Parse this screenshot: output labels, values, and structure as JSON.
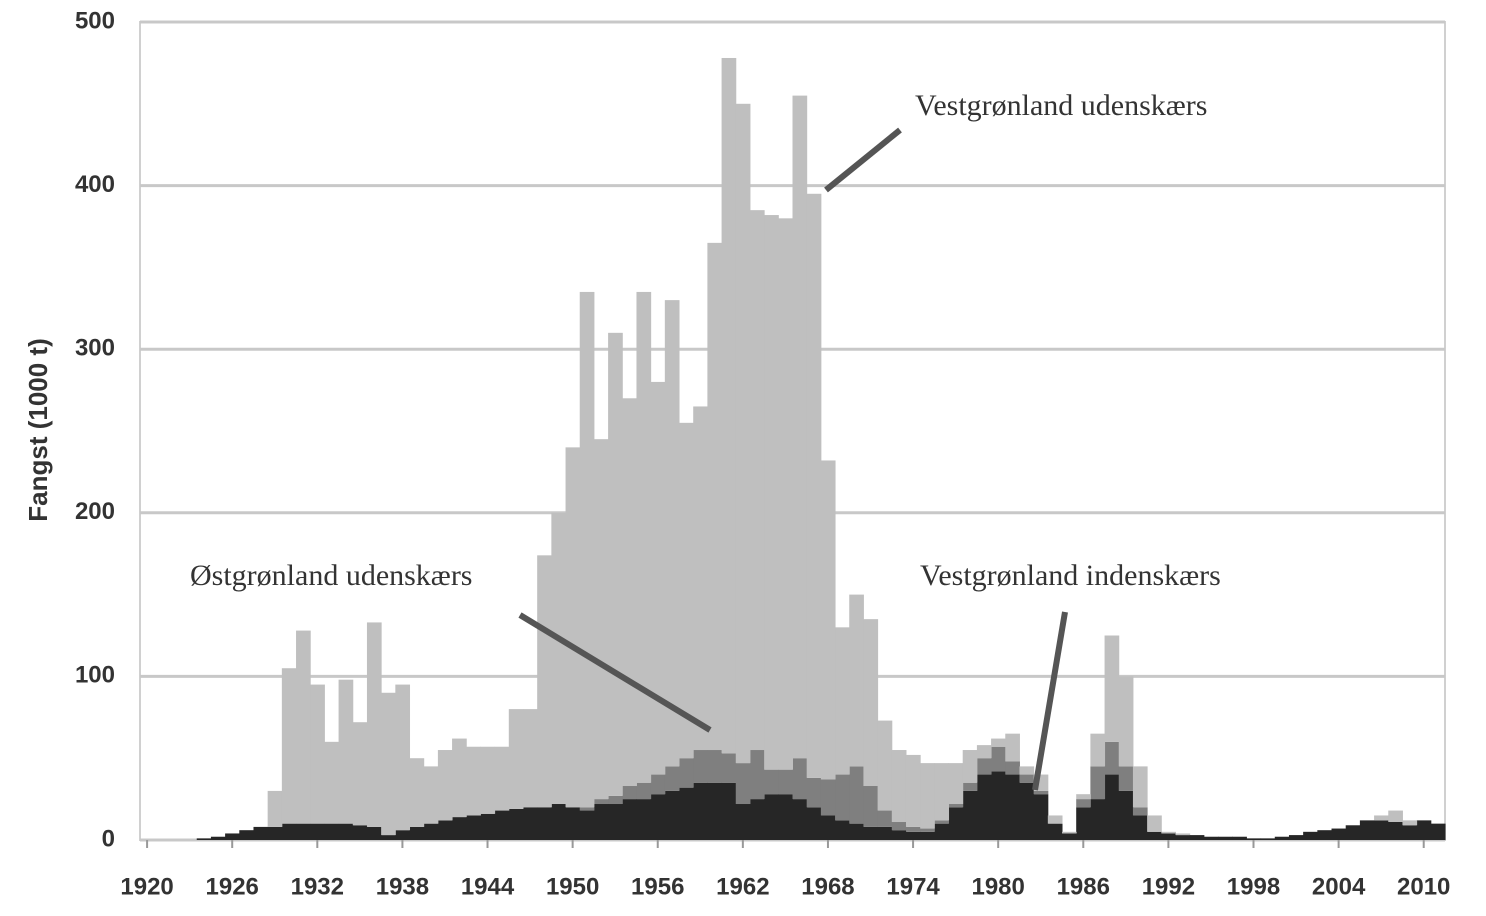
{
  "chart_data": {
    "type": "stacked-bar",
    "y_label": "Fangst (1000 t)",
    "x": [
      1920,
      1921,
      1922,
      1923,
      1924,
      1925,
      1926,
      1927,
      1928,
      1929,
      1930,
      1931,
      1932,
      1933,
      1934,
      1935,
      1936,
      1937,
      1938,
      1939,
      1940,
      1941,
      1942,
      1943,
      1944,
      1945,
      1946,
      1947,
      1948,
      1949,
      1950,
      1951,
      1952,
      1953,
      1954,
      1955,
      1956,
      1957,
      1958,
      1959,
      1960,
      1961,
      1962,
      1963,
      1964,
      1965,
      1966,
      1967,
      1968,
      1969,
      1970,
      1971,
      1972,
      1973,
      1974,
      1975,
      1976,
      1977,
      1978,
      1979,
      1980,
      1981,
      1982,
      1983,
      1984,
      1985,
      1986,
      1987,
      1988,
      1989,
      1990,
      1991,
      1992,
      1993,
      1994,
      1995,
      1996,
      1997,
      1998,
      1999,
      2000,
      2001,
      2002,
      2003,
      2004,
      2005,
      2006,
      2007,
      2008,
      2009,
      2010,
      2011
    ],
    "series": [
      {
        "name": "Vestgrønland indenskærs",
        "color": "#262626",
        "values": [
          0,
          0,
          0,
          0,
          1,
          2,
          4,
          6,
          8,
          8,
          10,
          10,
          10,
          10,
          10,
          9,
          8,
          3,
          6,
          8,
          10,
          12,
          14,
          15,
          16,
          18,
          19,
          20,
          20,
          22,
          20,
          18,
          22,
          22,
          25,
          25,
          28,
          30,
          32,
          35,
          35,
          35,
          22,
          25,
          28,
          28,
          25,
          20,
          15,
          12,
          10,
          8,
          8,
          6,
          5,
          5,
          10,
          20,
          30,
          40,
          42,
          40,
          35,
          28,
          10,
          4,
          20,
          25,
          40,
          30,
          15,
          5,
          4,
          3,
          3,
          2,
          2,
          2,
          1,
          1,
          2,
          3,
          5,
          6,
          7,
          9,
          12,
          12,
          11,
          9,
          12,
          10
        ]
      },
      {
        "name": "Østgrønland udenskærs",
        "color": "#7f7f7f",
        "values": [
          0,
          0,
          0,
          0,
          0,
          0,
          0,
          0,
          0,
          0,
          0,
          0,
          0,
          0,
          0,
          0,
          0,
          0,
          0,
          0,
          0,
          0,
          0,
          0,
          0,
          0,
          0,
          0,
          0,
          0,
          0,
          2,
          3,
          5,
          8,
          10,
          12,
          15,
          18,
          20,
          20,
          18,
          25,
          30,
          15,
          15,
          25,
          18,
          22,
          28,
          35,
          25,
          10,
          5,
          3,
          2,
          2,
          2,
          5,
          10,
          15,
          8,
          5,
          2,
          0,
          0,
          5,
          20,
          20,
          15,
          5,
          0,
          0,
          0,
          0,
          0,
          0,
          0,
          0,
          0,
          0,
          0,
          0,
          0,
          0,
          0,
          0,
          0,
          0,
          0,
          0,
          0
        ]
      },
      {
        "name": "Vestgrønland udenskærs",
        "color": "#bfbfbf",
        "values": [
          0,
          0,
          0,
          0,
          0,
          0,
          0,
          0,
          0,
          22,
          95,
          118,
          85,
          50,
          88,
          63,
          125,
          87,
          89,
          42,
          35,
          43,
          48,
          42,
          41,
          39,
          61,
          60,
          154,
          178,
          220,
          315,
          220,
          283,
          237,
          300,
          240,
          285,
          205,
          210,
          310,
          425,
          403,
          330,
          339,
          337,
          405,
          357,
          195,
          90,
          105,
          102,
          55,
          44,
          44,
          40,
          35,
          25,
          20,
          8,
          5,
          17,
          5,
          10,
          5,
          1,
          3,
          20,
          65,
          55,
          25,
          10,
          1,
          1,
          0,
          0,
          0,
          0,
          0,
          0,
          0,
          0,
          0,
          0,
          0,
          0,
          0,
          3,
          7,
          3,
          0,
          0
        ]
      }
    ],
    "xlim": [
      1919.5,
      2011.5
    ],
    "xticks": [
      1920,
      1926,
      1932,
      1938,
      1944,
      1950,
      1956,
      1962,
      1968,
      1974,
      1980,
      1986,
      1992,
      1998,
      2004,
      2010
    ],
    "ylim": [
      0,
      500
    ],
    "yticks": [
      0,
      100,
      200,
      300,
      400,
      500
    ],
    "grid": true
  }
}
